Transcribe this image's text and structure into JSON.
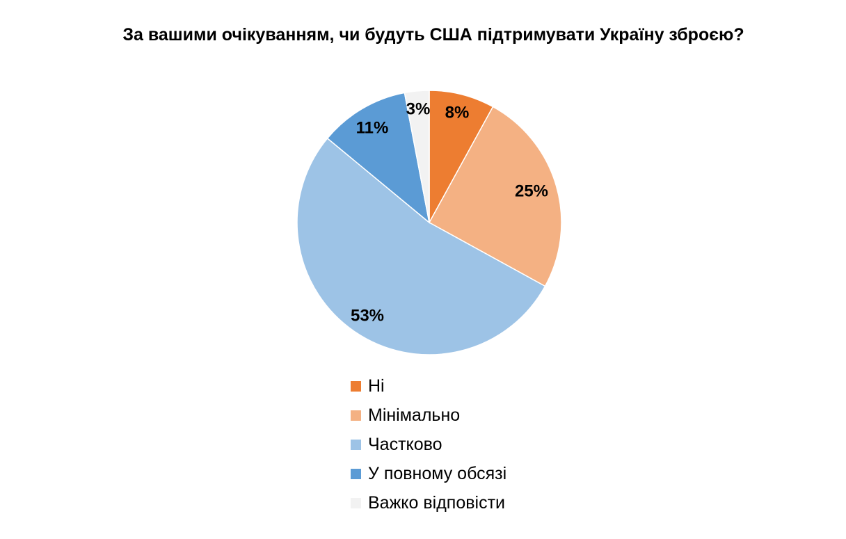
{
  "chart_data": {
    "type": "pie",
    "title": "За вашими очікуванням, чи будуть США підтримувати Україну зброєю?",
    "categories": [
      "Ні",
      "Мінімально",
      "Частково",
      "У повному обсязі",
      "Важко відповісти"
    ],
    "values": [
      8,
      25,
      53,
      11,
      3
    ],
    "data_labels": [
      "8%",
      "25%",
      "53%",
      "11%",
      "3%"
    ],
    "colors": [
      "#ED7D31",
      "#F4B183",
      "#9DC3E6",
      "#5B9BD5",
      "#F2F2F2"
    ],
    "legend_position": "bottom",
    "start_angle_deg": 0,
    "direction": "clockwise"
  }
}
